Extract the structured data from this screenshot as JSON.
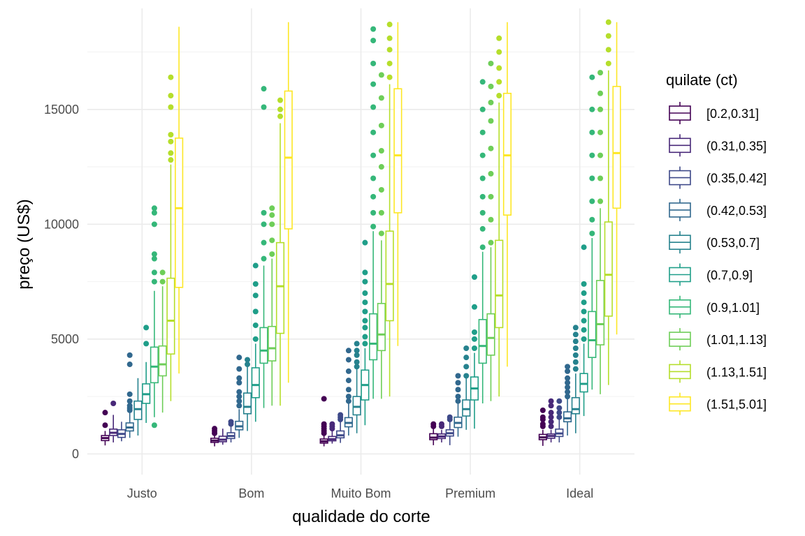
{
  "chart_data": {
    "type": "boxplot",
    "title": "",
    "xlabel": "qualidade do corte",
    "ylabel": "preço (US$)",
    "ylim": [
      -900,
      19400
    ],
    "yticks": [
      0,
      5000,
      10000,
      15000
    ],
    "ytick_labels": [
      "0",
      "5000",
      "10000",
      "15000"
    ],
    "categories": [
      "Justo",
      "Bom",
      "Muito Bom",
      "Premium",
      "Ideal"
    ],
    "grid": true,
    "legend": {
      "title": "quilate (ct)",
      "position": "right"
    },
    "series": [
      {
        "name": "[0.2,0.31]",
        "color": "#440154",
        "boxes": [
          {
            "q1": 580,
            "median": 690,
            "q3": 800,
            "whisker_low": 370,
            "whisker_high": 1000,
            "outliers": [
              1250,
              1800
            ]
          },
          {
            "q1": 500,
            "median": 580,
            "q3": 680,
            "whisker_low": 330,
            "whisker_high": 800,
            "outliers": [
              900,
              1000,
              1100
            ]
          },
          {
            "q1": 470,
            "median": 550,
            "q3": 650,
            "whisker_low": 330,
            "whisker_high": 800,
            "outliers": [
              900,
              1000,
              1100,
              1200,
              1300,
              2400
            ]
          },
          {
            "q1": 620,
            "median": 710,
            "q3": 880,
            "whisker_low": 380,
            "whisker_high": 1100,
            "outliers": [
              1200,
              1300
            ]
          },
          {
            "q1": 620,
            "median": 720,
            "q3": 850,
            "whisker_low": 350,
            "whisker_high": 1050,
            "outliers": [
              1200,
              1300,
              1500,
              1600,
              1900
            ]
          }
        ]
      },
      {
        "name": "(0.31,0.35]",
        "color": "#482878",
        "boxes": [
          {
            "q1": 800,
            "median": 920,
            "q3": 1080,
            "whisker_low": 500,
            "whisker_high": 1700,
            "outliers": [
              2200
            ]
          },
          {
            "q1": 530,
            "median": 620,
            "q3": 770,
            "whisker_low": 400,
            "whisker_high": 1100,
            "outliers": []
          },
          {
            "q1": 570,
            "median": 640,
            "q3": 760,
            "whisker_low": 450,
            "whisker_high": 1000,
            "outliers": [
              1100,
              1200,
              1300
            ]
          },
          {
            "q1": 670,
            "median": 760,
            "q3": 870,
            "whisker_low": 500,
            "whisker_high": 1050,
            "outliers": [
              1200,
              1300
            ]
          },
          {
            "q1": 680,
            "median": 780,
            "q3": 870,
            "whisker_low": 500,
            "whisker_high": 1050,
            "outliers": [
              1200,
              1400,
              1600,
              1800,
              2100,
              2300
            ]
          }
        ]
      },
      {
        "name": "(0.35,0.42]",
        "color": "#3e4989",
        "boxes": [
          {
            "q1": 720,
            "median": 870,
            "q3": 1050,
            "whisker_low": 550,
            "whisker_high": 1400,
            "outliers": []
          },
          {
            "q1": 670,
            "median": 780,
            "q3": 920,
            "whisker_low": 500,
            "whisker_high": 1200,
            "outliers": [
              1300,
              1400
            ]
          },
          {
            "q1": 700,
            "median": 810,
            "q3": 1000,
            "whisker_low": 480,
            "whisker_high": 1400,
            "outliers": [
              1500,
              1600,
              1700
            ]
          },
          {
            "q1": 780,
            "median": 900,
            "q3": 1050,
            "whisker_low": 380,
            "whisker_high": 1400,
            "outliers": [
              1500,
              1600
            ]
          },
          {
            "q1": 760,
            "median": 890,
            "q3": 1080,
            "whisker_low": 500,
            "whisker_high": 1500,
            "outliers": [
              1600,
              1800,
              2000,
              2300
            ]
          }
        ]
      },
      {
        "name": "(0.42,0.53]",
        "color": "#31688e",
        "boxes": [
          {
            "q1": 1000,
            "median": 1150,
            "q3": 1350,
            "whisker_low": 700,
            "whisker_high": 1800,
            "outliers": [
              1900,
              2000,
              2100,
              2300,
              2600,
              3900,
              4300
            ]
          },
          {
            "q1": 1050,
            "median": 1200,
            "q3": 1420,
            "whisker_low": 700,
            "whisker_high": 1950,
            "outliers": [
              2100,
              2300,
              2500,
              2700,
              3100,
              3300,
              3700,
              4200
            ]
          },
          {
            "q1": 1180,
            "median": 1350,
            "q3": 1580,
            "whisker_low": 800,
            "whisker_high": 2200,
            "outliers": [
              2300,
              2500,
              2800,
              3200,
              3600,
              4100,
              4500
            ]
          },
          {
            "q1": 1150,
            "median": 1350,
            "q3": 1600,
            "whisker_low": 750,
            "whisker_high": 2200,
            "outliers": [
              2300,
              2500,
              2800,
              3100,
              3400
            ]
          },
          {
            "q1": 1400,
            "median": 1550,
            "q3": 1830,
            "whisker_low": 800,
            "whisker_high": 2400,
            "outliers": [
              2500,
              2700,
              2900,
              3100,
              3300,
              3600,
              3800
            ]
          }
        ]
      },
      {
        "name": "(0.53,0.7]",
        "color": "#26828e",
        "boxes": [
          {
            "q1": 1500,
            "median": 1950,
            "q3": 2300,
            "whisker_low": 800,
            "whisker_high": 3300,
            "outliers": []
          },
          {
            "q1": 1750,
            "median": 2050,
            "q3": 2650,
            "whisker_low": 1000,
            "whisker_high": 3800,
            "outliers": [
              3900,
              4100
            ]
          },
          {
            "q1": 1700,
            "median": 2050,
            "q3": 2500,
            "whisker_low": 900,
            "whisker_high": 3700,
            "outliers": [
              3800,
              4000,
              4300,
              4500,
              4800
            ]
          },
          {
            "q1": 1650,
            "median": 1950,
            "q3": 2350,
            "whisker_low": 1050,
            "whisker_high": 3300,
            "outliers": [
              3400,
              3800,
              4200,
              4600
            ]
          },
          {
            "q1": 1750,
            "median": 1950,
            "q3": 2450,
            "whisker_low": 900,
            "whisker_high": 3500,
            "outliers": [
              3700,
              4000,
              4300,
              4600,
              4900,
              5200,
              5500
            ]
          }
        ]
      },
      {
        "name": "(0.7,0.9]",
        "color": "#1f9e89",
        "boxes": [
          {
            "q1": 2200,
            "median": 2600,
            "q3": 3050,
            "whisker_low": 1350,
            "whisker_high": 4000,
            "outliers": [
              4800,
              5500
            ]
          },
          {
            "q1": 2450,
            "median": 3000,
            "q3": 3750,
            "whisker_low": 1400,
            "whisker_high": 4800,
            "outliers": [
              5000,
              5600,
              6200,
              6900,
              7400,
              8200
            ]
          },
          {
            "q1": 2350,
            "median": 3000,
            "q3": 3650,
            "whisker_low": 1250,
            "whisker_high": 4600,
            "outliers": [
              4800,
              5100,
              5500,
              5800,
              6200,
              6600,
              7000,
              7500,
              7900,
              9200
            ]
          },
          {
            "q1": 2350,
            "median": 2850,
            "q3": 3350,
            "whisker_low": 1100,
            "whisker_high": 4400,
            "outliers": [
              4600,
              5000,
              5300,
              6400,
              7700
            ]
          },
          {
            "q1": 2700,
            "median": 3050,
            "q3": 3500,
            "whisker_low": 1650,
            "whisker_high": 4800,
            "outliers": [
              5000,
              5400,
              5800,
              6200,
              6600,
              7000,
              7400,
              9000
            ]
          }
        ]
      },
      {
        "name": "(0.9,1.01]",
        "color": "#35b779",
        "boxes": [
          {
            "q1": 3100,
            "median": 3800,
            "q3": 4650,
            "whisker_low": 1600,
            "whisker_high": 7100,
            "outliers": [
              7500,
              7900,
              8500,
              8700,
              10000,
              10500,
              10700,
              1250
            ]
          },
          {
            "q1": 3950,
            "median": 4500,
            "q3": 5500,
            "whisker_low": 2000,
            "whisker_high": 8200,
            "outliers": [
              8500,
              9200,
              10000,
              10500,
              15100,
              15900
            ]
          },
          {
            "q1": 4100,
            "median": 4800,
            "q3": 6100,
            "whisker_low": 2400,
            "whisker_high": 9700,
            "outliers": [
              9900,
              10500,
              11200,
              12000,
              13000,
              14000,
              15100,
              16100,
              17000,
              18000,
              18500
            ]
          },
          {
            "q1": 3950,
            "median": 4700,
            "q3": 5850,
            "whisker_low": 2200,
            "whisker_high": 8800,
            "outliers": [
              9000,
              9800,
              10500,
              11200,
              12000,
              13000,
              14000,
              15000,
              16200
            ]
          },
          {
            "q1": 4200,
            "median": 4950,
            "q3": 6200,
            "whisker_low": 2800,
            "whisker_high": 9400,
            "outliers": [
              9600,
              10200,
              11000,
              12000,
              13000,
              14000,
              15000,
              16400
            ]
          }
        ]
      },
      {
        "name": "(1.01,1.13]",
        "color": "#6ece58",
        "boxes": [
          {
            "q1": 3400,
            "median": 3900,
            "q3": 4700,
            "whisker_low": 1800,
            "whisker_high": 7300,
            "outliers": [
              7500,
              7900
            ]
          },
          {
            "q1": 4050,
            "median": 4600,
            "q3": 5550,
            "whisker_low": 2100,
            "whisker_high": 8500,
            "outliers": [
              8700,
              9300,
              10000,
              10400,
              10700
            ]
          },
          {
            "q1": 4500,
            "median": 5200,
            "q3": 6550,
            "whisker_low": 2400,
            "whisker_high": 9300,
            "outliers": [
              9600,
              10500,
              11500,
              12500,
              13200,
              14300,
              15500,
              16500
            ]
          },
          {
            "q1": 4300,
            "median": 5050,
            "q3": 6100,
            "whisker_low": 2300,
            "whisker_high": 9000,
            "outliers": [
              9200,
              10200,
              11200,
              12200,
              13300,
              14500,
              15300,
              16000,
              17000
            ]
          },
          {
            "q1": 4750,
            "median": 5650,
            "q3": 7550,
            "whisker_low": 2600,
            "whisker_high": 10700,
            "outliers": [
              11000,
              12000,
              13000,
              14000,
              15000,
              15700,
              16600
            ]
          }
        ]
      },
      {
        "name": "(1.13,1.51]",
        "color": "#b5de2b",
        "boxes": [
          {
            "q1": 4350,
            "median": 5800,
            "q3": 7650,
            "whisker_low": 2300,
            "whisker_high": 12600,
            "outliers": [
              12800,
              13100,
              13600,
              13900,
              15100,
              15600,
              16400
            ]
          },
          {
            "q1": 5250,
            "median": 7300,
            "q3": 9200,
            "whisker_low": 2100,
            "whisker_high": 14400,
            "outliers": [
              14700,
              15000,
              15400
            ]
          },
          {
            "q1": 5800,
            "median": 7400,
            "q3": 9700,
            "whisker_low": 2500,
            "whisker_high": 16100,
            "outliers": [
              16400,
              17000,
              17600,
              18100,
              18700
            ]
          },
          {
            "q1": 5500,
            "median": 6900,
            "q3": 9300,
            "whisker_low": 2500,
            "whisker_high": 15300,
            "outliers": [
              15600,
              16200,
              16800,
              17500,
              18100
            ]
          },
          {
            "q1": 6000,
            "median": 7800,
            "q3": 10100,
            "whisker_low": 3000,
            "whisker_high": 16700,
            "outliers": [
              17000,
              17600,
              18200,
              18800
            ]
          }
        ]
      },
      {
        "name": "(1.51,5.01]",
        "color": "#fde725",
        "boxes": [
          {
            "q1": 7250,
            "median": 10700,
            "q3": 13750,
            "whisker_low": 3500,
            "whisker_high": 18600,
            "outliers": []
          },
          {
            "q1": 9800,
            "median": 12900,
            "q3": 15800,
            "whisker_low": 3100,
            "whisker_high": 18800,
            "outliers": []
          },
          {
            "q1": 10500,
            "median": 13000,
            "q3": 15900,
            "whisker_low": 4700,
            "whisker_high": 18800,
            "outliers": []
          },
          {
            "q1": 10400,
            "median": 13000,
            "q3": 15700,
            "whisker_low": 3800,
            "whisker_high": 18800,
            "outliers": []
          },
          {
            "q1": 10700,
            "median": 13100,
            "q3": 16000,
            "whisker_low": 5200,
            "whisker_high": 18800,
            "outliers": []
          }
        ]
      }
    ]
  }
}
